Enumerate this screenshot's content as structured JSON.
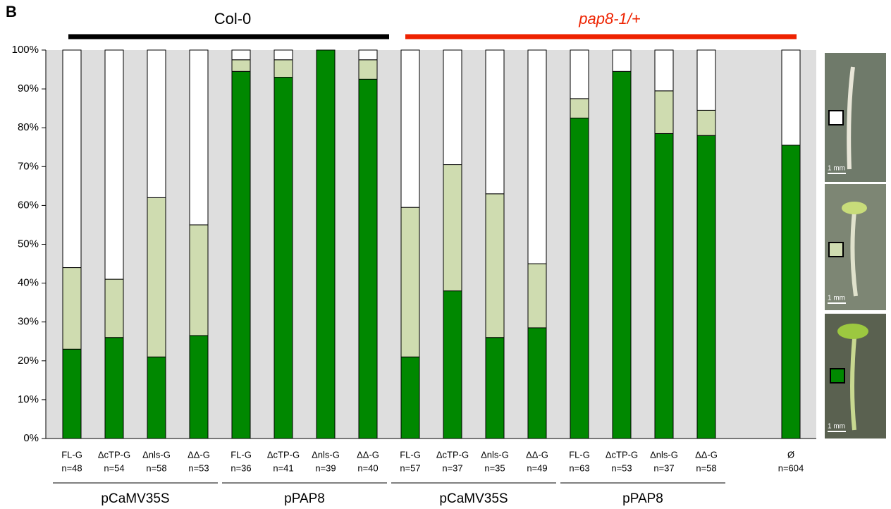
{
  "chart_data": {
    "type": "stacked-bar",
    "panel_label": "B",
    "groups": [
      "Col-0",
      "pap8-1/+"
    ],
    "group_colors": [
      "#000000",
      "#ee2200"
    ],
    "subgroups": [
      "pCaMV35S",
      "pPAP8",
      "pCaMV35S",
      "pPAP8"
    ],
    "categories": [
      "FL-G",
      "ΔcTP-G",
      "Δnls-G",
      "ΔΔ-G",
      "FL-G",
      "ΔcTP-G",
      "Δnls-G",
      "ΔΔ-G",
      "FL-G",
      "ΔcTP-G",
      "Δnls-G",
      "ΔΔ-G",
      "FL-G",
      "ΔcTP-G",
      "Δnls-G",
      "ΔΔ-G",
      null,
      "Ø"
    ],
    "sample_sizes": [
      "n=48",
      "n=54",
      "n=58",
      "n=53",
      "n=36",
      "n=41",
      "n=39",
      "n=40",
      "n=57",
      "n=37",
      "n=35",
      "n=49",
      "n=63",
      "n=53",
      "n=37",
      "n=58",
      null,
      "n=604"
    ],
    "series": [
      {
        "color": "#008800",
        "values": [
          23,
          26,
          21,
          26.5,
          94.5,
          93,
          100,
          92.5,
          21,
          38,
          26,
          28.5,
          82.5,
          94.5,
          78.5,
          78,
          null,
          75.5
        ]
      },
      {
        "color": "#cfdcb0",
        "values": [
          21,
          15,
          41,
          28.5,
          3,
          4.5,
          0,
          5,
          38.5,
          32.5,
          37,
          16.5,
          5,
          0,
          11,
          6.5,
          null,
          0
        ]
      },
      {
        "color": "#ffffff",
        "values": [
          56,
          59,
          38,
          45,
          2.5,
          2.5,
          0,
          2.5,
          40.5,
          29.5,
          37,
          55,
          12.5,
          5.5,
          10.5,
          15.5,
          null,
          24.5
        ]
      }
    ],
    "ylim": [
      0,
      100
    ],
    "yticks": [
      {
        "value": 0,
        "label": "0%"
      },
      {
        "value": 10,
        "label": "10%"
      },
      {
        "value": 20,
        "label": "20%"
      },
      {
        "value": 30,
        "label": "30%"
      },
      {
        "value": 40,
        "label": "40%"
      },
      {
        "value": 50,
        "label": "50%"
      },
      {
        "value": 60,
        "label": "60%"
      },
      {
        "value": 70,
        "label": "70%"
      },
      {
        "value": 80,
        "label": "80%"
      },
      {
        "value": 90,
        "label": "90%"
      },
      {
        "value": 100,
        "label": "100%"
      }
    ],
    "photo_scale_labels": [
      "1 mm",
      "1 mm",
      "1 mm"
    ]
  }
}
